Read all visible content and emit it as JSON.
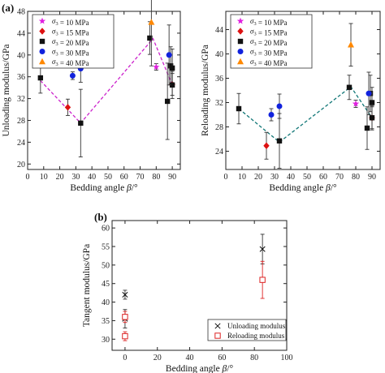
{
  "panels": [
    {
      "label": "(a)",
      "type": "scatter",
      "xlabel": "Bedding angle β/°",
      "ylabel": "Unloading modulus/GPa",
      "xlim": [
        0,
        95
      ],
      "ylim": [
        19,
        48
      ],
      "xticks": [
        0,
        10,
        20,
        30,
        40,
        50,
        60,
        70,
        80,
        90
      ],
      "yticks": [
        20,
        24,
        28,
        32,
        36,
        40,
        44,
        48
      ],
      "legend": [
        "σ3 = 10 MPa",
        "σ3 = 15 MPa",
        "σ3 = 20 MPa",
        "σ3 = 30 MPa",
        "σ3 = 40 MPa"
      ],
      "series": [
        {
          "name": "σ3 = 10 MPa",
          "color": "#e020e0",
          "marker": "star",
          "points": [
            {
              "x": 80,
              "y": 37.8,
              "err": 0.6
            }
          ]
        },
        {
          "name": "σ3 = 15 MPa",
          "color": "#dd1111",
          "marker": "diamond",
          "points": [
            {
              "x": 25,
              "y": 30.4,
              "err": 1.5
            },
            {
              "x": 90,
              "y": 34.6,
              "err": 2.0
            }
          ]
        },
        {
          "name": "σ3 = 20 MPa",
          "color": "#111111",
          "marker": "square",
          "points": [
            {
              "x": 8,
              "y": 35.8,
              "err": 2.8
            },
            {
              "x": 33,
              "y": 27.5,
              "err": 6.2
            },
            {
              "x": 76,
              "y": 43.1,
              "err": 3.0
            },
            {
              "x": 87,
              "y": 31.5,
              "err": 7.0
            },
            {
              "x": 89,
              "y": 38.0,
              "err": 3.5
            },
            {
              "x": 90,
              "y": 37.6,
              "err": 3.5
            },
            {
              "x": 90,
              "y": 34.5,
              "err": 2.5
            }
          ]
        },
        {
          "name": "σ3 = 30 MPa",
          "color": "#1122dd",
          "marker": "circle",
          "points": [
            {
              "x": 28,
              "y": 36.2,
              "err": 0.7
            },
            {
              "x": 33,
              "y": 37.5,
              "err": 2.5
            },
            {
              "x": 88,
              "y": 40.0,
              "err": 5.5
            }
          ]
        },
        {
          "name": "σ3 = 40 MPa",
          "color": "#ff8800",
          "marker": "triangle",
          "points": [
            {
              "x": 77,
              "y": 46.0,
              "err": 8.0
            }
          ]
        }
      ],
      "trend": {
        "color": "#cc22cc",
        "points": [
          [
            8,
            35.3
          ],
          [
            33,
            27.5
          ],
          [
            78,
            43.0
          ],
          [
            90,
            34.5
          ]
        ]
      }
    },
    {
      "type": "scatter",
      "xlabel": "Bedding angle β/°",
      "ylabel": "Reloading modulus/GPa",
      "xlim": [
        0,
        95
      ],
      "ylim": [
        21,
        47
      ],
      "xticks": [
        0,
        10,
        20,
        30,
        40,
        50,
        60,
        70,
        80,
        90
      ],
      "yticks": [
        24,
        28,
        32,
        36,
        40,
        44
      ],
      "legend": [
        "σ3 = 10 MPa",
        "σ3 = 15 MPa",
        "σ3 = 20 MPa",
        "σ3 = 30 MPa",
        "σ3 = 40 MPa"
      ],
      "series": [
        {
          "name": "σ3 = 10 MPa",
          "color": "#e020e0",
          "marker": "star",
          "points": [
            {
              "x": 80,
              "y": 31.8,
              "err": 0.6
            }
          ]
        },
        {
          "name": "σ3 = 15 MPa",
          "color": "#dd1111",
          "marker": "diamond",
          "points": [
            {
              "x": 25,
              "y": 24.9,
              "err": 2.2
            },
            {
              "x": 90,
              "y": 29.5,
              "err": 1.8
            }
          ]
        },
        {
          "name": "σ3 = 20 MPa",
          "color": "#111111",
          "marker": "square",
          "points": [
            {
              "x": 8,
              "y": 31.0,
              "err": 2.5
            },
            {
              "x": 33,
              "y": 25.7,
              "err": 4.5
            },
            {
              "x": 76,
              "y": 34.5,
              "err": 2.0
            },
            {
              "x": 87,
              "y": 27.8,
              "err": 3.5
            },
            {
              "x": 89,
              "y": 33.5,
              "err": 3.0
            },
            {
              "x": 90,
              "y": 32.0,
              "err": 2.5
            },
            {
              "x": 90,
              "y": 29.5,
              "err": 2.0
            }
          ]
        },
        {
          "name": "σ3 = 30 MPa",
          "color": "#1122dd",
          "marker": "circle",
          "points": [
            {
              "x": 28,
              "y": 30.0,
              "err": 1.0
            },
            {
              "x": 33,
              "y": 31.4,
              "err": 2.0
            },
            {
              "x": 88,
              "y": 33.5,
              "err": 3.5
            }
          ]
        },
        {
          "name": "σ3 = 40 MPa",
          "color": "#ff8800",
          "marker": "triangle",
          "points": [
            {
              "x": 77,
              "y": 41.5,
              "err": 3.5
            }
          ]
        }
      ],
      "trend": {
        "color": "#117777",
        "points": [
          [
            8,
            31.0
          ],
          [
            33,
            25.5
          ],
          [
            77,
            34.6
          ],
          [
            90,
            29.5
          ]
        ]
      }
    },
    {
      "label": "(b)",
      "type": "scatter",
      "xlabel": "Bedding angle β/°",
      "ylabel": "Tangent modulus/GPa",
      "xlim": [
        -8,
        100
      ],
      "ylim": [
        27,
        62
      ],
      "xticks": [
        0,
        20,
        40,
        60,
        80,
        100
      ],
      "yticks": [
        30,
        35,
        40,
        45,
        50,
        55,
        60
      ],
      "legend": [
        "Unloading modulus",
        "Reloading modulus"
      ],
      "series": [
        {
          "name": "Unloading modulus",
          "color": "#111111",
          "marker": "cross",
          "points": [
            {
              "x": 0,
              "y": 42.0,
              "err": 1.2
            },
            {
              "x": 0,
              "y": 35.5,
              "err": 2.5
            },
            {
              "x": 85,
              "y": 54.3,
              "err": 4.0
            }
          ]
        },
        {
          "name": "Reloading modulus",
          "color": "#dd2222",
          "marker": "opensquare",
          "points": [
            {
              "x": 0,
              "y": 36.0,
              "err": 1.5
            },
            {
              "x": 0,
              "y": 30.8,
              "err": 1.2
            },
            {
              "x": 85,
              "y": 46.0,
              "err": 5.0
            }
          ]
        }
      ]
    }
  ]
}
